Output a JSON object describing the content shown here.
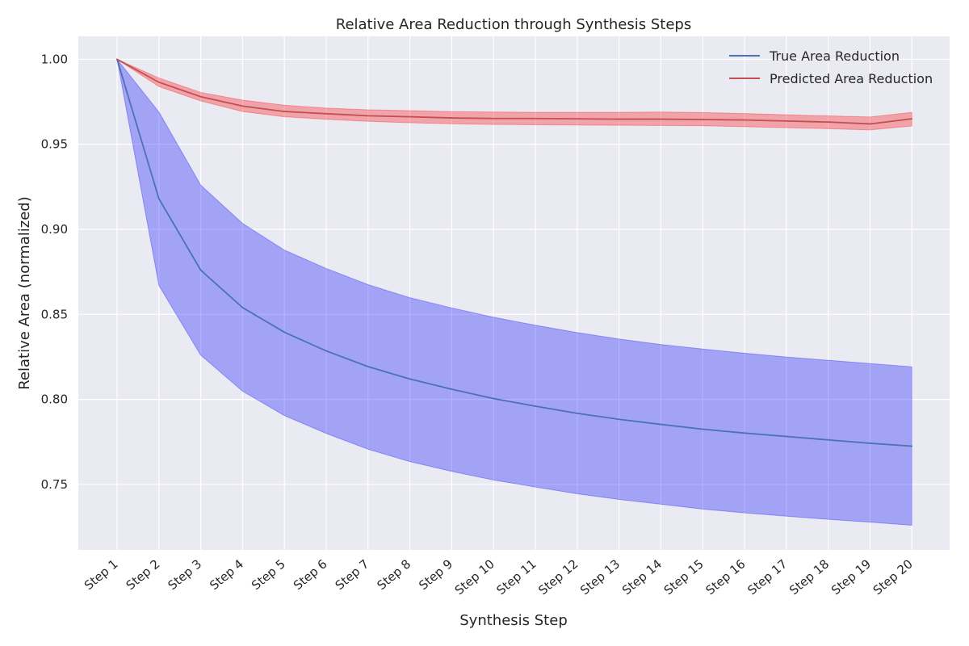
{
  "chart_data": {
    "type": "line",
    "title": "Relative Area Reduction through Synthesis Steps",
    "xlabel": "Synthesis Step",
    "ylabel": "Relative Area (normalized)",
    "categories": [
      "Step 1",
      "Step 2",
      "Step 3",
      "Step 4",
      "Step 5",
      "Step 6",
      "Step 7",
      "Step 8",
      "Step 9",
      "Step 10",
      "Step 11",
      "Step 12",
      "Step 13",
      "Step 14",
      "Step 15",
      "Step 16",
      "Step 17",
      "Step 18",
      "Step 19",
      "Step 20"
    ],
    "ylim": [
      0.7115,
      1.0135
    ],
    "yticks": [
      0.75,
      0.8,
      0.85,
      0.9,
      0.95,
      1.0
    ],
    "ytick_labels": [
      "0.75",
      "0.80",
      "0.85",
      "0.90",
      "0.95",
      "1.00"
    ],
    "grid": true,
    "legend_position": "top-right",
    "series": [
      {
        "name": "True Area Reduction",
        "color": "#4c72b0",
        "band_color": "#0000ff",
        "values": [
          1.0,
          0.918,
          0.876,
          0.854,
          0.8395,
          0.8285,
          0.8193,
          0.812,
          0.806,
          0.8005,
          0.796,
          0.7918,
          0.7883,
          0.7853,
          0.7825,
          0.7802,
          0.7782,
          0.7762,
          0.7742,
          0.7725
        ],
        "upper": [
          1.0,
          0.969,
          0.926,
          0.9035,
          0.8878,
          0.877,
          0.8675,
          0.8598,
          0.8538,
          0.8483,
          0.8436,
          0.8393,
          0.8355,
          0.8323,
          0.8296,
          0.8272,
          0.8249,
          0.823,
          0.8211,
          0.8192
        ],
        "lower": [
          1.0,
          0.867,
          0.826,
          0.8048,
          0.7905,
          0.78,
          0.7707,
          0.7634,
          0.7577,
          0.7526,
          0.7485,
          0.7445,
          0.7412,
          0.7384,
          0.7355,
          0.7333,
          0.7313,
          0.7295,
          0.7278,
          0.726
        ]
      },
      {
        "name": "Predicted Area Reduction",
        "color": "#c44e52",
        "band_color": "#ff0000",
        "values": [
          1.0,
          0.9865,
          0.978,
          0.9725,
          0.9693,
          0.968,
          0.9668,
          0.9662,
          0.9655,
          0.9652,
          0.9652,
          0.965,
          0.9648,
          0.9648,
          0.9646,
          0.9643,
          0.9637,
          0.9631,
          0.962,
          0.965
        ],
        "upper": [
          1.0,
          0.989,
          0.9805,
          0.976,
          0.973,
          0.9713,
          0.9703,
          0.9698,
          0.9692,
          0.969,
          0.9688,
          0.9688,
          0.9688,
          0.969,
          0.9687,
          0.9681,
          0.9674,
          0.9667,
          0.9661,
          0.9688
        ],
        "lower": [
          1.0,
          0.984,
          0.9755,
          0.9693,
          0.9662,
          0.9647,
          0.9635,
          0.9627,
          0.9621,
          0.9617,
          0.9615,
          0.9613,
          0.9612,
          0.9611,
          0.9609,
          0.9604,
          0.9598,
          0.9592,
          0.9585,
          0.9608
        ]
      }
    ]
  }
}
